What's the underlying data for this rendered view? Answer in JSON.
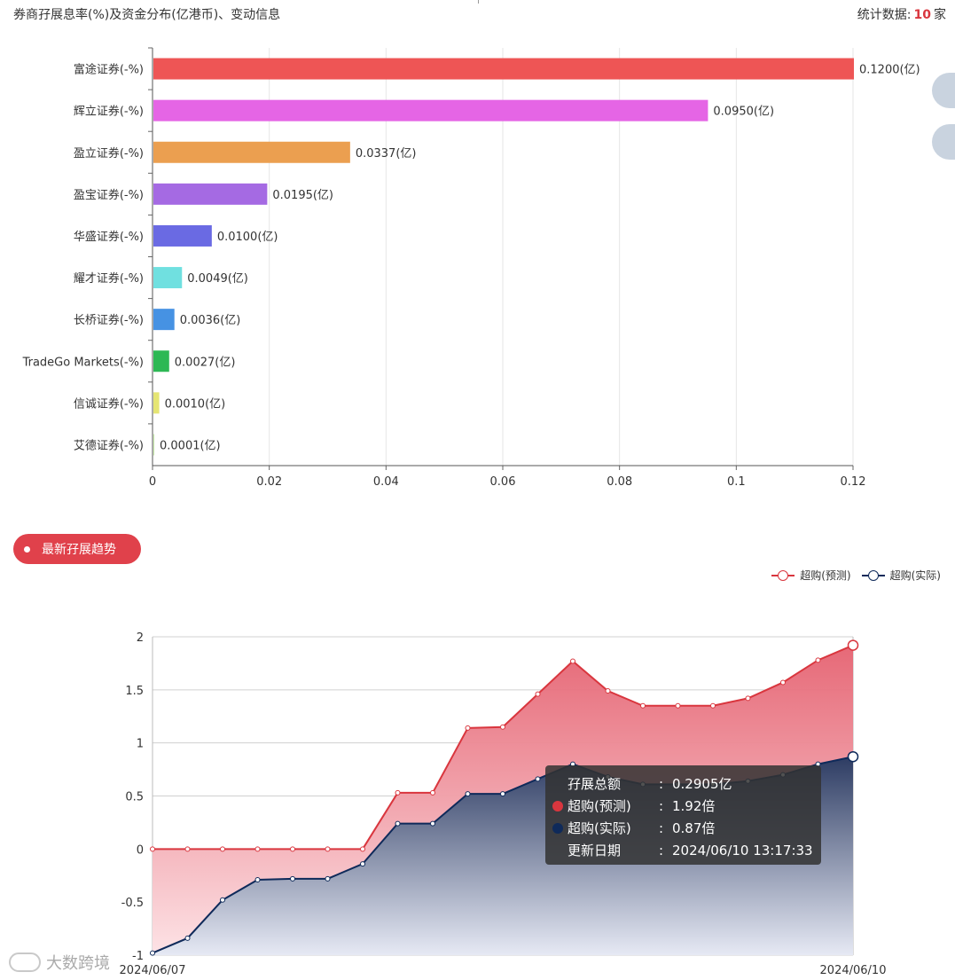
{
  "header": {
    "title": "券商孖展息率(%)及资金分布(亿港币)、变动信息",
    "count_label": "统计数据:",
    "count_value": "10",
    "count_unit": "家"
  },
  "chart_data": [
    {
      "type": "bar",
      "orientation": "horizontal",
      "categories": [
        "富途证券(-%)",
        "辉立证券(-%)",
        "盈立证券(-%)",
        "盈宝证券(-%)",
        "华盛证券(-%)",
        "耀才证券(-%)",
        "长桥证券(-%)",
        "TradeGo Markets(-%)",
        "信诚证券(-%)",
        "艾德证券(-%)"
      ],
      "values": [
        0.12,
        0.095,
        0.0337,
        0.0195,
        0.01,
        0.0049,
        0.0036,
        0.0027,
        0.001,
        0.0001
      ],
      "value_labels": [
        "0.1200(亿)",
        "0.0950(亿)",
        "0.0337(亿)",
        "0.0195(亿)",
        "0.0100(亿)",
        "0.0049(亿)",
        "0.0036(亿)",
        "0.0027(亿)",
        "0.0010(亿)",
        "0.0001(亿)"
      ],
      "colors": [
        "#ee5555",
        "#e565e5",
        "#eb9f50",
        "#a56ae3",
        "#6a6ae3",
        "#70e0e0",
        "#4692e3",
        "#2db854",
        "#e5e573",
        "#c3e8a5"
      ],
      "xlim": [
        0,
        0.12
      ],
      "xticks": [
        "0",
        "0.02",
        "0.04",
        "0.06",
        "0.08",
        "0.1",
        "0.12"
      ],
      "grid": true
    },
    {
      "type": "area",
      "x_start_label": "2024/06/07",
      "x_end_label": "2024/06/10",
      "ylim": [
        -1,
        2
      ],
      "yticks": [
        "2",
        "1.5",
        "1",
        "0.5",
        "0",
        "-0.5",
        "-1"
      ],
      "legend_position": "top-right",
      "series": [
        {
          "name": "超购(预测)",
          "color": "#d9363e",
          "values": [
            0,
            0,
            0,
            0,
            0,
            0,
            0,
            0.53,
            0.53,
            1.14,
            1.15,
            1.46,
            1.77,
            1.49,
            1.35,
            1.35,
            1.35,
            1.42,
            1.57,
            1.78,
            1.92
          ]
        },
        {
          "name": "超购(实际)",
          "color": "#0f2a5a",
          "values": [
            -0.98,
            -0.84,
            -0.48,
            -0.29,
            -0.28,
            -0.28,
            -0.14,
            0.24,
            0.24,
            0.52,
            0.52,
            0.66,
            0.8,
            0.68,
            0.61,
            0.61,
            0.61,
            0.64,
            0.7,
            0.8,
            0.87
          ]
        }
      ]
    }
  ],
  "section": {
    "trend_button": "最新孖展趋势"
  },
  "tooltip": {
    "rows": [
      {
        "label": "孖展总额",
        "sep": ":",
        "value": "0.2905亿"
      },
      {
        "label": "超购(预测)",
        "sep": ":",
        "value": "1.92倍"
      },
      {
        "label": "超购(实际)",
        "sep": ":",
        "value": "0.87倍"
      },
      {
        "label": "更新日期",
        "sep": ":",
        "value": "2024/06/10 13:17:33"
      }
    ]
  },
  "watermark": {
    "text": "大数跨境"
  }
}
